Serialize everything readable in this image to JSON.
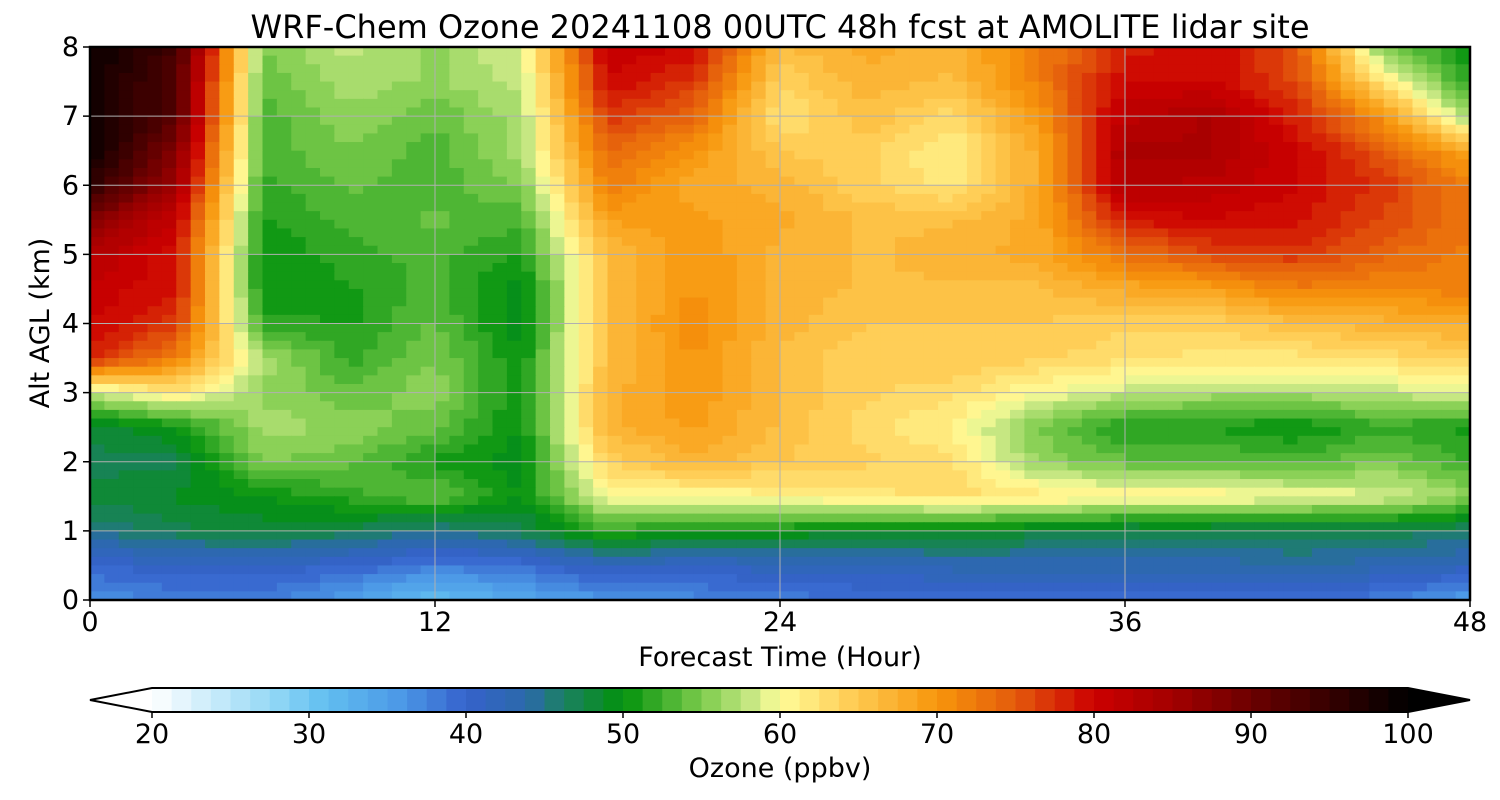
{
  "chart_data": {
    "type": "heatmap",
    "title": "WRF-Chem Ozone  20241108 00UTC 48h fcst at AMOLITE lidar site",
    "xlabel": "Forecast Time (Hour)",
    "ylabel": "Alt AGL (km)",
    "xlim": [
      0,
      48
    ],
    "ylim": [
      0,
      8
    ],
    "xticks": [
      "0",
      "12",
      "24",
      "36",
      "48"
    ],
    "yticks": [
      "0",
      "1",
      "2",
      "3",
      "4",
      "5",
      "6",
      "7",
      "8"
    ],
    "grid": true,
    "x": [
      0,
      3,
      6,
      9,
      12,
      15,
      18,
      21,
      24,
      27,
      30,
      33,
      36,
      39,
      42,
      45,
      48
    ],
    "y": [
      0,
      0.5,
      1,
      1.5,
      2,
      2.5,
      3,
      3.5,
      4,
      4.5,
      5,
      5.5,
      6,
      6.5,
      7,
      7.5,
      8
    ],
    "z_unit": "ppbv",
    "values": [
      [
        36,
        38,
        38,
        35,
        31,
        34,
        36,
        37,
        38,
        39,
        39,
        39,
        39,
        39,
        39,
        38,
        35
      ],
      [
        40,
        41,
        41,
        40,
        38,
        39,
        42,
        41,
        42,
        42,
        43,
        43,
        43,
        43,
        44,
        43,
        42
      ],
      [
        45,
        47,
        48,
        47,
        45,
        47,
        52,
        50,
        50,
        49,
        49,
        48,
        47,
        47,
        47,
        47,
        46
      ],
      [
        48,
        49,
        50,
        52,
        54,
        50,
        60,
        60,
        61,
        62,
        63,
        62,
        61,
        61,
        60,
        59,
        56
      ],
      [
        47,
        47,
        55,
        54,
        51,
        49,
        64,
        67,
        65,
        64,
        63,
        56,
        54,
        54,
        53,
        55,
        52
      ],
      [
        48,
        50,
        57,
        56,
        54,
        50,
        67,
        69,
        66,
        63,
        61,
        55,
        51,
        51,
        50,
        52,
        51
      ],
      [
        58,
        62,
        56,
        54,
        56,
        50,
        67,
        70,
        66,
        64,
        63,
        60,
        58,
        57,
        57,
        58,
        59
      ],
      [
        78,
        72,
        57,
        52,
        55,
        50,
        66,
        70,
        66,
        64,
        65,
        64,
        63,
        62,
        62,
        63,
        64
      ],
      [
        80,
        77,
        52,
        51,
        54,
        49,
        66,
        71,
        67,
        65,
        65,
        65,
        64,
        64,
        66,
        67,
        68
      ],
      [
        81,
        79,
        50,
        51,
        53,
        49,
        66,
        70,
        67,
        66,
        66,
        66,
        68,
        69,
        72,
        71,
        72
      ],
      [
        83,
        79,
        50,
        52,
        53,
        51,
        66,
        70,
        67,
        66,
        67,
        68,
        73,
        76,
        77,
        74,
        72
      ],
      [
        88,
        81,
        51,
        53,
        54,
        53,
        69,
        69,
        68,
        66,
        66,
        68,
        79,
        80,
        79,
        76,
        73
      ],
      [
        96,
        85,
        52,
        54,
        53,
        55,
        72,
        68,
        67,
        64,
        62,
        68,
        83,
        82,
        80,
        77,
        72
      ],
      [
        99,
        88,
        53,
        55,
        53,
        57,
        74,
        70,
        65,
        64,
        61,
        68,
        84,
        84,
        80,
        75,
        68
      ],
      [
        99,
        92,
        53,
        56,
        54,
        57,
        77,
        74,
        62,
        66,
        63,
        70,
        82,
        84,
        78,
        70,
        56
      ],
      [
        99,
        92,
        54,
        57,
        56,
        58,
        80,
        77,
        64,
        67,
        66,
        72,
        80,
        80,
        76,
        62,
        51
      ],
      [
        99,
        94,
        55,
        58,
        56,
        59,
        81,
        80,
        66,
        68,
        67,
        72,
        78,
        80,
        75,
        55,
        50
      ]
    ],
    "colorbar": {
      "label": "Ozone  (ppbv)",
      "min": 20,
      "max": 100,
      "ticks": [
        "20",
        "30",
        "40",
        "50",
        "60",
        "70",
        "80",
        "90",
        "100"
      ],
      "extend": "both",
      "colormap_anchors": [
        {
          "v": 20,
          "c": "#ffffff"
        },
        {
          "v": 28,
          "c": "#8fd6f5"
        },
        {
          "v": 31,
          "c": "#62bff0"
        },
        {
          "v": 36,
          "c": "#4b97e6"
        },
        {
          "v": 40,
          "c": "#3662cc"
        },
        {
          "v": 44,
          "c": "#2a6aa8"
        },
        {
          "v": 46,
          "c": "#1d7f68"
        },
        {
          "v": 50,
          "c": "#02920c"
        },
        {
          "v": 55,
          "c": "#7ccb4c"
        },
        {
          "v": 58,
          "c": "#c2e680"
        },
        {
          "v": 60,
          "c": "#fffd9a"
        },
        {
          "v": 64,
          "c": "#ffd25c"
        },
        {
          "v": 70,
          "c": "#f7960c"
        },
        {
          "v": 75,
          "c": "#e45a0c"
        },
        {
          "v": 80,
          "c": "#cc0000"
        },
        {
          "v": 85,
          "c": "#a30000"
        },
        {
          "v": 92,
          "c": "#560000"
        },
        {
          "v": 100,
          "c": "#000000"
        }
      ]
    }
  }
}
